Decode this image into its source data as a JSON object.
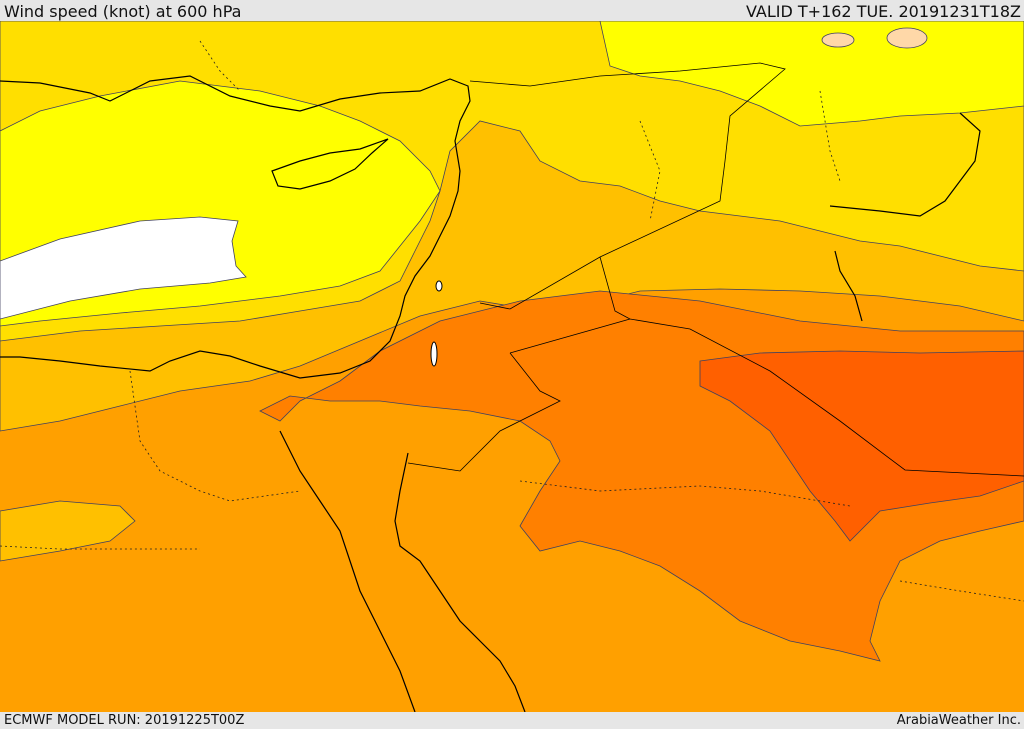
{
  "header": {
    "title": "Wind speed (knot) at 600 hPa",
    "valid": "VALID T+162 TUE. 20191231T18Z"
  },
  "footer": {
    "model_run": "ECMWF MODEL RUN: 20191225T00Z",
    "credit": "ArabiaWeather Inc."
  },
  "map": {
    "region": "Eastern Mediterranean / Middle East",
    "colors": {
      "white_band": "#ffffff",
      "yellow": "#ffff00",
      "light_gold": "#ffdf00",
      "gold": "#ffc000",
      "orange": "#ffa000",
      "dark_orange": "#ff8000",
      "red_orange": "#ff6000",
      "peach": "#ffd8a8",
      "coastline": "#000000",
      "contour": "#404060"
    }
  }
}
